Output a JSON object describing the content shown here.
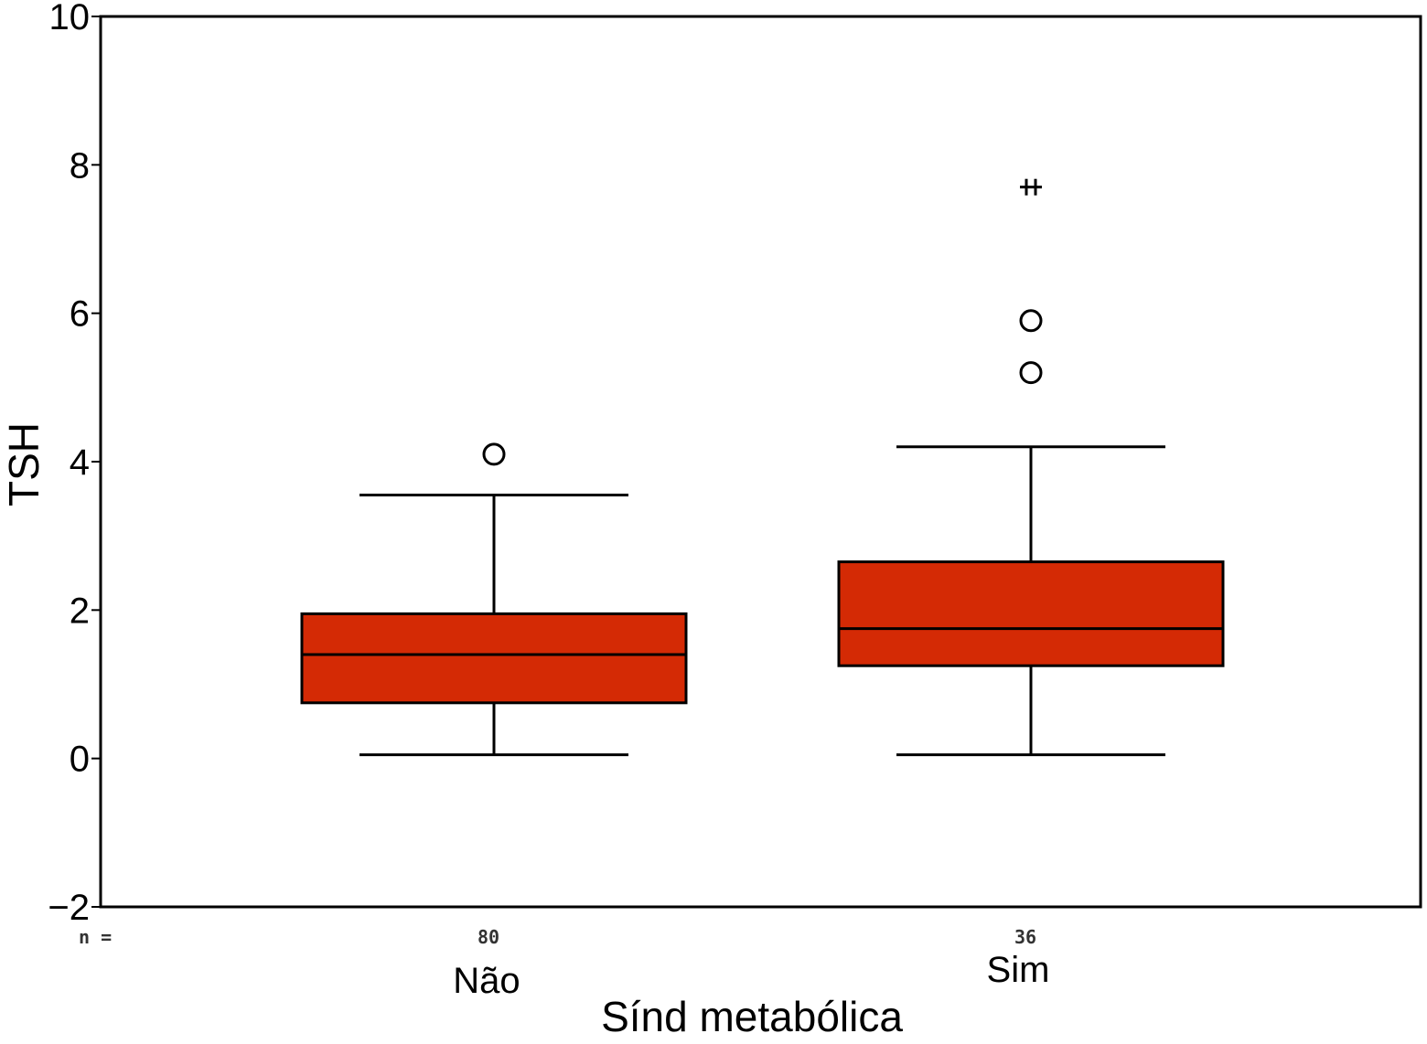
{
  "chart_data": {
    "type": "box",
    "title": "",
    "xlabel": "Sínd metabólica",
    "ylabel": "TSH",
    "ylim": [
      -2,
      10
    ],
    "yticks": [
      -2,
      0,
      2,
      4,
      6,
      8,
      10
    ],
    "ytick_labels": [
      "−2",
      "0",
      "2",
      "4",
      "6",
      "8",
      "10"
    ],
    "grid": false,
    "box_color": "#d42a05",
    "n_label": "n =",
    "categories": [
      {
        "label": "Não",
        "n": "80",
        "whisker_low": 0.05,
        "q1": 0.75,
        "median": 1.4,
        "q3": 1.95,
        "whisker_high": 3.55,
        "outliers": [
          4.1
        ],
        "extremes": []
      },
      {
        "label": "Sim",
        "n": "36",
        "whisker_low": 0.05,
        "q1": 1.25,
        "median": 1.75,
        "q3": 2.65,
        "whisker_high": 4.2,
        "outliers": [
          5.9,
          5.2
        ],
        "extremes": [
          7.7
        ]
      }
    ]
  }
}
